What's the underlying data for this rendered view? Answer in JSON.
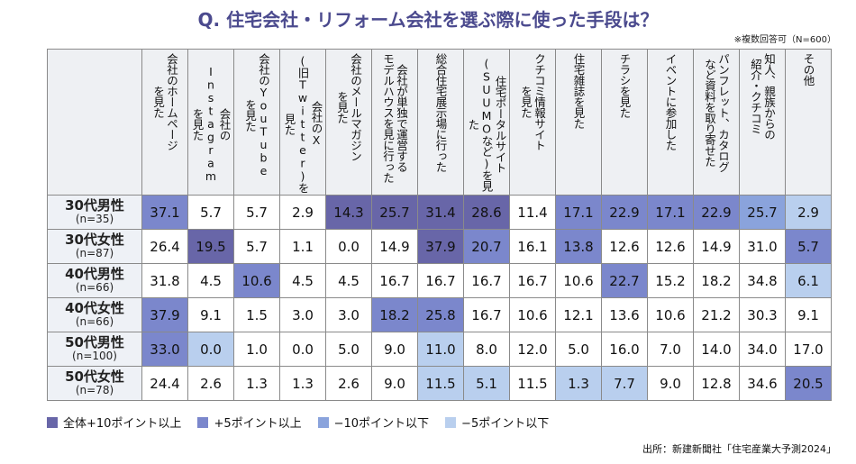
{
  "title": "Q. 住宅会社・リフォーム会社を選ぶ際に使った手段は？",
  "note": "※複数回答可（N=600）",
  "source": "出所：新建新聞社「住宅産業大予測2024」",
  "colors": {
    "d": "#6866a8",
    "m": "#7b87cc",
    "l": "#8aa3dc",
    "s": "#b9cfee"
  },
  "chart_data": {
    "type": "table",
    "columns": [
      "会社のホームページ\nを見た",
      "会社のInstagram\nを見た",
      "会社のYouTube\nを見た",
      "会社のX\n(旧Twitter)を見た",
      "会社のメールマガジン\nを見た",
      "会社が単独で運営する\nモデルハウスを見に行った",
      "総合住宅展示場に行った",
      "住宅ポータルサイト\n(SUUMOなど)を見た",
      "クチコミ情報サイト\nを見た",
      "住宅雑誌を見た",
      "チラシを見た",
      "イベントに参加した",
      "パンフレット、カタログ\nなど資料を取り寄せた",
      "知人、親族からの\n紹介・クチコミ",
      "その他"
    ],
    "rows": [
      {
        "group": "30代男性",
        "n": "(n=35)",
        "values": [
          "37.1",
          "5.7",
          "5.7",
          "2.9",
          "14.3",
          "25.7",
          "31.4",
          "28.6",
          "11.4",
          "17.1",
          "22.9",
          "17.1",
          "22.9",
          "25.7",
          "2.9"
        ],
        "highlight": [
          "m",
          "",
          "",
          "",
          "d",
          "d",
          "d",
          "d",
          "",
          "m",
          "m",
          "m",
          "m",
          "l",
          "s"
        ]
      },
      {
        "group": "30代女性",
        "n": "(n=87)",
        "values": [
          "26.4",
          "19.5",
          "5.7",
          "1.1",
          "0.0",
          "14.9",
          "37.9",
          "20.7",
          "16.1",
          "13.8",
          "12.6",
          "12.6",
          "14.9",
          "31.0",
          "5.7"
        ],
        "highlight": [
          "",
          "d",
          "",
          "",
          "",
          "",
          "d",
          "m",
          "",
          "m",
          "",
          "",
          "",
          "",
          "m"
        ]
      },
      {
        "group": "40代男性",
        "n": "(n=66)",
        "values": [
          "31.8",
          "4.5",
          "10.6",
          "4.5",
          "4.5",
          "16.7",
          "16.7",
          "16.7",
          "16.7",
          "10.6",
          "22.7",
          "15.2",
          "18.2",
          "34.8",
          "6.1"
        ],
        "highlight": [
          "",
          "",
          "m",
          "",
          "",
          "",
          "",
          "",
          "",
          "",
          "m",
          "",
          "",
          "",
          "s"
        ]
      },
      {
        "group": "40代女性",
        "n": "(n=66)",
        "values": [
          "37.9",
          "9.1",
          "1.5",
          "3.0",
          "3.0",
          "18.2",
          "25.8",
          "16.7",
          "10.6",
          "12.1",
          "13.6",
          "10.6",
          "21.2",
          "30.3",
          "9.1"
        ],
        "highlight": [
          "m",
          "",
          "",
          "",
          "",
          "m",
          "m",
          "",
          "",
          "",
          "",
          "",
          "",
          "",
          ""
        ]
      },
      {
        "group": "50代男性",
        "n": "(n=100)",
        "values": [
          "33.0",
          "0.0",
          "1.0",
          "0.0",
          "5.0",
          "9.0",
          "11.0",
          "8.0",
          "12.0",
          "5.0",
          "16.0",
          "7.0",
          "14.0",
          "34.0",
          "17.0"
        ],
        "highlight": [
          "m",
          "s",
          "",
          "",
          "",
          "",
          "s",
          "",
          "",
          "",
          "",
          "",
          "",
          "",
          ""
        ]
      },
      {
        "group": "50代女性",
        "n": "(n=78)",
        "values": [
          "24.4",
          "2.6",
          "1.3",
          "1.3",
          "2.6",
          "9.0",
          "11.5",
          "5.1",
          "11.5",
          "1.3",
          "7.7",
          "9.0",
          "12.8",
          "34.6",
          "20.5"
        ],
        "highlight": [
          "",
          "",
          "",
          "",
          "",
          "",
          "s",
          "s",
          "",
          "s",
          "s",
          "",
          "",
          "",
          "m"
        ]
      }
    ],
    "legend": [
      {
        "key": "d",
        "label": "全体+10ポイント以上"
      },
      {
        "key": "m",
        "label": "+5ポイント以上"
      },
      {
        "key": "l",
        "label": "−10ポイント以下"
      },
      {
        "key": "s",
        "label": "−5ポイント以下"
      }
    ]
  }
}
